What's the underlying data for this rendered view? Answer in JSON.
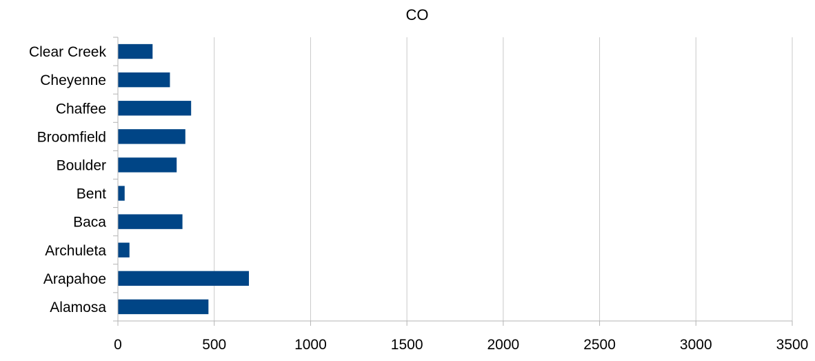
{
  "chart_data": {
    "type": "bar",
    "orientation": "horizontal",
    "title": "CO",
    "xlabel": "",
    "ylabel": "",
    "categories": [
      "Alamosa",
      "Arapahoe",
      "Archuleta",
      "Baca",
      "Bent",
      "Boulder",
      "Broomfield",
      "Chaffee",
      "Cheyenne",
      "Clear Creek"
    ],
    "values": [
      470,
      680,
      60,
      335,
      35,
      305,
      350,
      380,
      270,
      180
    ],
    "xlim": [
      0,
      3500
    ],
    "x_ticks": [
      "0",
      "500",
      "1000",
      "1500",
      "2000",
      "2500",
      "3000",
      "3500"
    ],
    "grid": true,
    "legend": "none",
    "bar_color": "#004586"
  }
}
